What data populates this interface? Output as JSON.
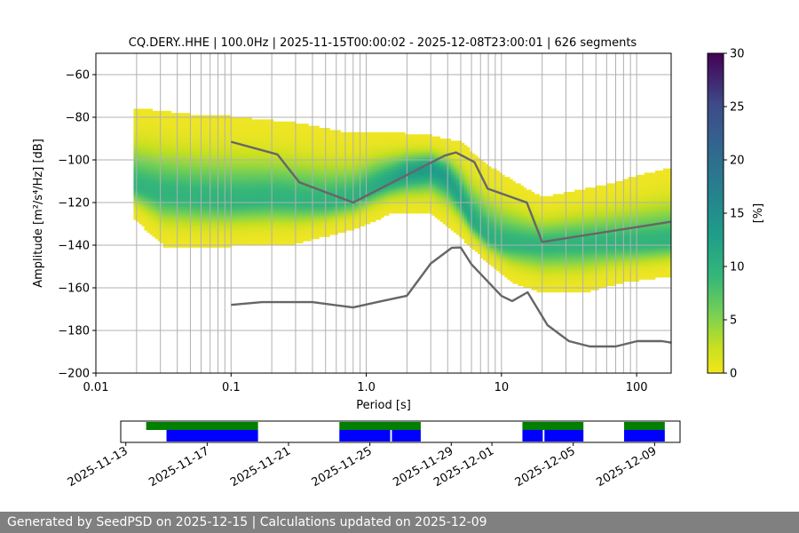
{
  "chart_data": {
    "type": "heatmap",
    "title": "CQ.DERY..HHE | 100.0Hz | 2025-11-15T00:00:02 - 2025-12-08T23:00:01 | 626 segments",
    "xlabel": "Period [s]",
    "ylabel": "Amplitude [m²/s⁴/Hz] [dB]",
    "x_scale": "log",
    "xlim": [
      0.01,
      180
    ],
    "ylim": [
      -200,
      -50
    ],
    "x_ticks": [
      {
        "value": 0.01,
        "label": "0.01"
      },
      {
        "value": 0.1,
        "label": "0.1"
      },
      {
        "value": 1,
        "label": "1.0"
      },
      {
        "value": 10,
        "label": "10"
      },
      {
        "value": 100,
        "label": "100"
      }
    ],
    "y_ticks": [
      {
        "value": -60,
        "label": "−60"
      },
      {
        "value": -80,
        "label": "−80"
      },
      {
        "value": -100,
        "label": "−100"
      },
      {
        "value": -120,
        "label": "−120"
      },
      {
        "value": -140,
        "label": "−140"
      },
      {
        "value": -160,
        "label": "−160"
      },
      {
        "value": -180,
        "label": "−180"
      },
      {
        "value": -200,
        "label": "−200"
      }
    ],
    "grid_periods": [
      0.02,
      0.03,
      0.04,
      0.05,
      0.06,
      0.07,
      0.08,
      0.09,
      0.1,
      0.2,
      0.3,
      0.4,
      0.5,
      0.6,
      0.7,
      0.8,
      0.9,
      1,
      2,
      3,
      4,
      5,
      6,
      7,
      8,
      9,
      10,
      20,
      30,
      40,
      50,
      60,
      70,
      80,
      90,
      100
    ],
    "grid_db": [
      -60,
      -80,
      -100,
      -120,
      -140,
      -160,
      -180
    ],
    "colorbar": {
      "label": "[%]",
      "min": 0,
      "max": 30,
      "ticks": [
        0,
        5,
        10,
        15,
        20,
        25,
        30
      ]
    },
    "noise_models": [
      {
        "name": "high-noise-model",
        "points": [
          [
            0.1,
            -91.5
          ],
          [
            0.22,
            -97.4
          ],
          [
            0.32,
            -110.5
          ],
          [
            0.8,
            -120
          ],
          [
            3.8,
            -98
          ],
          [
            4.6,
            -96.5
          ],
          [
            6.3,
            -101
          ],
          [
            7.9,
            -113.5
          ],
          [
            15.4,
            -120
          ],
          [
            20,
            -138.5
          ],
          [
            180,
            -129
          ]
        ]
      },
      {
        "name": "low-noise-model",
        "points": [
          [
            0.1,
            -168
          ],
          [
            0.17,
            -166.7
          ],
          [
            0.4,
            -166.7
          ],
          [
            0.8,
            -169.2
          ],
          [
            1.26,
            -166.4
          ],
          [
            2,
            -163.7
          ],
          [
            3,
            -148.6
          ],
          [
            4.3,
            -141.2
          ],
          [
            5,
            -141.1
          ],
          [
            6,
            -149
          ],
          [
            10,
            -163.8
          ],
          [
            12,
            -166.2
          ],
          [
            15.6,
            -162.1
          ],
          [
            21.9,
            -177.5
          ],
          [
            31.6,
            -185
          ],
          [
            45,
            -187.5
          ],
          [
            70,
            -187.5
          ],
          [
            101,
            -185
          ],
          [
            154,
            -185
          ],
          [
            180,
            -185.7
          ]
        ]
      }
    ],
    "psd_density": {
      "period_range": [
        0.019,
        180
      ],
      "mode_curve": [
        [
          0.019,
          -112
        ],
        [
          0.03,
          -116
        ],
        [
          0.06,
          -118
        ],
        [
          0.1,
          -119
        ],
        [
          0.2,
          -118
        ],
        [
          0.5,
          -120
        ],
        [
          0.8,
          -118
        ],
        [
          1.2,
          -112
        ],
        [
          2,
          -106
        ],
        [
          3,
          -104
        ],
        [
          4,
          -108
        ],
        [
          5,
          -118
        ],
        [
          6,
          -128
        ],
        [
          8,
          -136
        ],
        [
          10,
          -139
        ],
        [
          20,
          -140
        ],
        [
          50,
          -139
        ],
        [
          100,
          -139
        ],
        [
          180,
          -138
        ]
      ],
      "upper_edge": [
        [
          0.019,
          -76
        ],
        [
          0.05,
          -79
        ],
        [
          0.1,
          -80
        ],
        [
          0.3,
          -83
        ],
        [
          0.8,
          -88
        ],
        [
          1.2,
          -87
        ],
        [
          3,
          -89
        ],
        [
          5,
          -92
        ],
        [
          8,
          -103
        ],
        [
          12,
          -110
        ],
        [
          20,
          -118
        ],
        [
          60,
          -112
        ],
        [
          100,
          -108
        ],
        [
          180,
          -104
        ]
      ],
      "lower_edge": [
        [
          0.019,
          -127
        ],
        [
          0.032,
          -140
        ],
        [
          0.06,
          -141
        ],
        [
          0.1,
          -140
        ],
        [
          0.3,
          -139
        ],
        [
          0.8,
          -132
        ],
        [
          1.5,
          -125
        ],
        [
          3,
          -125
        ],
        [
          5,
          -136
        ],
        [
          8,
          -148
        ],
        [
          12,
          -157
        ],
        [
          20,
          -162
        ],
        [
          40,
          -162
        ],
        [
          80,
          -157
        ],
        [
          180,
          -154
        ]
      ]
    },
    "timeline": {
      "x_ticks": [
        "2025-11-13",
        "2025-11-17",
        "2025-11-21",
        "2025-11-25",
        "2025-11-29",
        "2025-12-01",
        "2025-12-05",
        "2025-12-09"
      ],
      "tick_dates": [
        "2025-11-13",
        "2025-11-17",
        "2025-11-21",
        "2025-11-25",
        "2025-11-29",
        "2025-12-01",
        "2025-12-05",
        "2025-12-09"
      ],
      "date_range": [
        "2025-11-12T18:00",
        "2025-12-10T06:00"
      ],
      "green_spans": [
        [
          "2025-11-14T00:00",
          "2025-11-19T12:00"
        ],
        [
          "2025-11-23T12:00",
          "2025-11-27T12:00"
        ],
        [
          "2025-12-02T12:00",
          "2025-12-05T12:00"
        ],
        [
          "2025-12-07T12:00",
          "2025-12-09T12:00"
        ]
      ],
      "blue_spans": [
        [
          "2025-11-15T00:00",
          "2025-11-19T12:00"
        ],
        [
          "2025-11-23T12:00",
          "2025-11-26T00:00"
        ],
        [
          "2025-11-26T02:00",
          "2025-11-27T12:00"
        ],
        [
          "2025-12-02T12:00",
          "2025-12-03T12:00"
        ],
        [
          "2025-12-03T14:00",
          "2025-12-05T12:00"
        ],
        [
          "2025-12-07T12:00",
          "2025-12-09T12:00"
        ]
      ],
      "colors": {
        "green": "#007f00",
        "blue": "#0000ff"
      }
    },
    "colors": {
      "noise_model": "#666666",
      "grid": "#b0b0b0"
    }
  },
  "footer": {
    "text": "Generated by SeedPSD on 2025-12-15 | Calculations updated on 2025-12-09"
  }
}
